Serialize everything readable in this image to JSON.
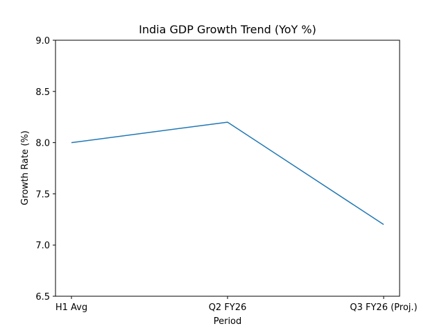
{
  "chart_data": {
    "type": "line",
    "title": "India GDP Growth Trend (YoY %)",
    "xlabel": "Period",
    "ylabel": "Growth Rate (%)",
    "categories": [
      "H1 Avg",
      "Q2 FY26",
      "Q3 FY26 (Proj.)"
    ],
    "series": [
      {
        "name": "GDP Growth",
        "values": [
          8.0,
          8.2,
          7.2
        ],
        "color": "#1f77b4"
      }
    ],
    "ylim": [
      6.5,
      9.0
    ],
    "yticks": [
      6.5,
      7.0,
      7.5,
      8.0,
      8.5,
      9.0
    ],
    "grid": false,
    "legend": "none"
  }
}
